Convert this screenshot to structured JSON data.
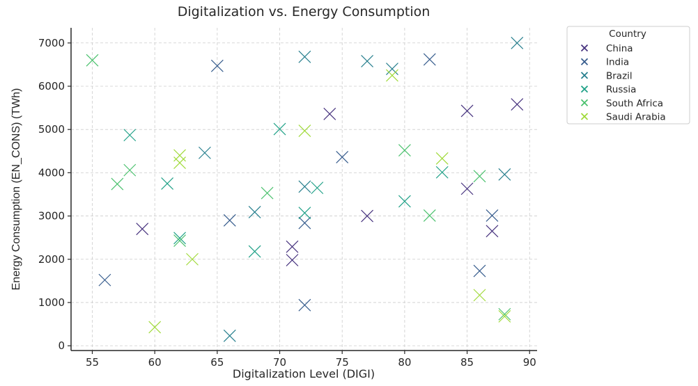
{
  "chart_data": {
    "type": "scatter",
    "title": "Digitalization vs. Energy Consumption",
    "xlabel": "Digitalization Level (DIGI)",
    "ylabel": "Energy Consumption (EN_CONS) (TWh)",
    "xlim": [
      53.3,
      90.6
    ],
    "ylim": [
      -110,
      7350
    ],
    "xticks": [
      55,
      60,
      65,
      70,
      75,
      80,
      85,
      90
    ],
    "yticks": [
      0,
      1000,
      2000,
      3000,
      4000,
      5000,
      6000,
      7000
    ],
    "grid": true,
    "marker": "x",
    "legend": {
      "title": "Country",
      "placement": "outside-top-right"
    },
    "series": [
      {
        "name": "China",
        "color": "#46327e",
        "points": [
          [
            74,
            5360
          ],
          [
            59,
            2700
          ],
          [
            71,
            2290
          ],
          [
            71,
            1980
          ],
          [
            77,
            3000
          ],
          [
            85,
            5430
          ],
          [
            89,
            5580
          ],
          [
            85,
            3630
          ],
          [
            87,
            2650
          ]
        ]
      },
      {
        "name": "India",
        "color": "#365c8d",
        "points": [
          [
            65,
            6470
          ],
          [
            56,
            1520
          ],
          [
            66,
            2900
          ],
          [
            75,
            4360
          ],
          [
            72,
            2840
          ],
          [
            72,
            940
          ],
          [
            82,
            6620
          ],
          [
            87,
            3010
          ],
          [
            86,
            1730
          ]
        ]
      },
      {
        "name": "Brazil",
        "color": "#277f8e",
        "points": [
          [
            64,
            4460
          ],
          [
            66,
            230
          ],
          [
            72,
            6680
          ],
          [
            77,
            6580
          ],
          [
            79,
            6400
          ],
          [
            72,
            3680
          ],
          [
            68,
            3090
          ],
          [
            89,
            7000
          ],
          [
            88,
            3960
          ]
        ]
      },
      {
        "name": "Russia",
        "color": "#1fa187",
        "points": [
          [
            58,
            4870
          ],
          [
            61,
            3750
          ],
          [
            62,
            2490
          ],
          [
            70,
            5010
          ],
          [
            73,
            3650
          ],
          [
            72,
            3070
          ],
          [
            68,
            2180
          ],
          [
            83,
            4010
          ],
          [
            80,
            3340
          ]
        ]
      },
      {
        "name": "South Africa",
        "color": "#4ac16d",
        "points": [
          [
            55,
            6600
          ],
          [
            58,
            4060
          ],
          [
            57,
            3740
          ],
          [
            62,
            2430
          ],
          [
            69,
            3530
          ],
          [
            80,
            4520
          ],
          [
            86,
            3920
          ],
          [
            82,
            3010
          ],
          [
            88,
            730
          ]
        ]
      },
      {
        "name": "Saudi Arabia",
        "color": "#a0da39",
        "points": [
          [
            62,
            4400
          ],
          [
            62,
            4230
          ],
          [
            63,
            2000
          ],
          [
            60,
            430
          ],
          [
            79,
            6250
          ],
          [
            72,
            4970
          ],
          [
            83,
            4330
          ],
          [
            86,
            1170
          ],
          [
            88,
            680
          ]
        ]
      }
    ]
  }
}
